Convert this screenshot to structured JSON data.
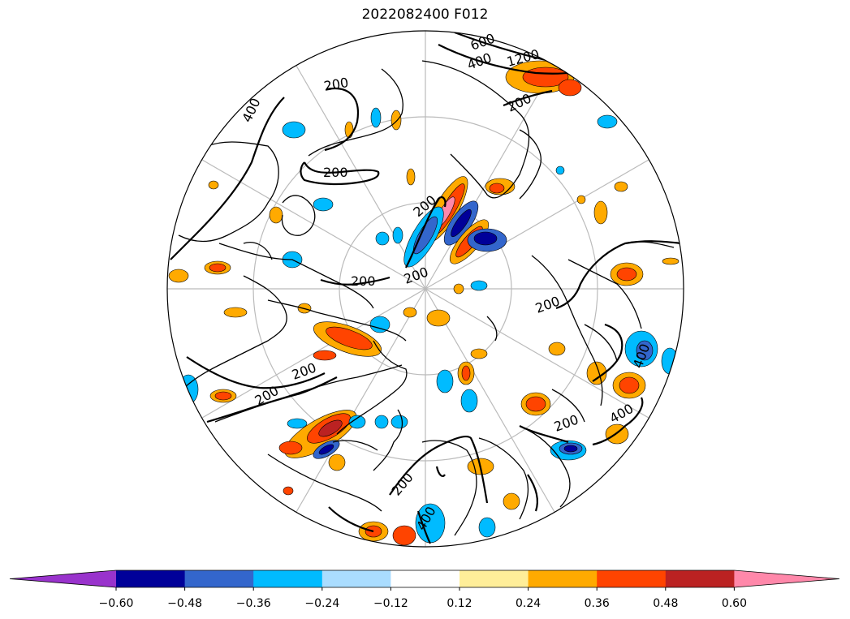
{
  "title": "2022082400 F012",
  "colorbar": {
    "colors": [
      "#9933cc",
      "#000099",
      "#3366cc",
      "#00bbff",
      "#aaddff",
      "#ffffff",
      "#ffee99",
      "#ffaa00",
      "#ff4400",
      "#bb2222",
      "#ff88aa"
    ],
    "ticks": [
      "−0.60",
      "−0.48",
      "−0.36",
      "−0.24",
      "−0.12",
      "0.12",
      "0.24",
      "0.36",
      "0.48",
      "0.60"
    ]
  },
  "contour_labels": [
    "200",
    "200",
    "200",
    "200",
    "200",
    "200",
    "200",
    "200",
    "200",
    "200",
    "200",
    "400",
    "400",
    "400",
    "400",
    "400",
    "600",
    "1200"
  ]
}
